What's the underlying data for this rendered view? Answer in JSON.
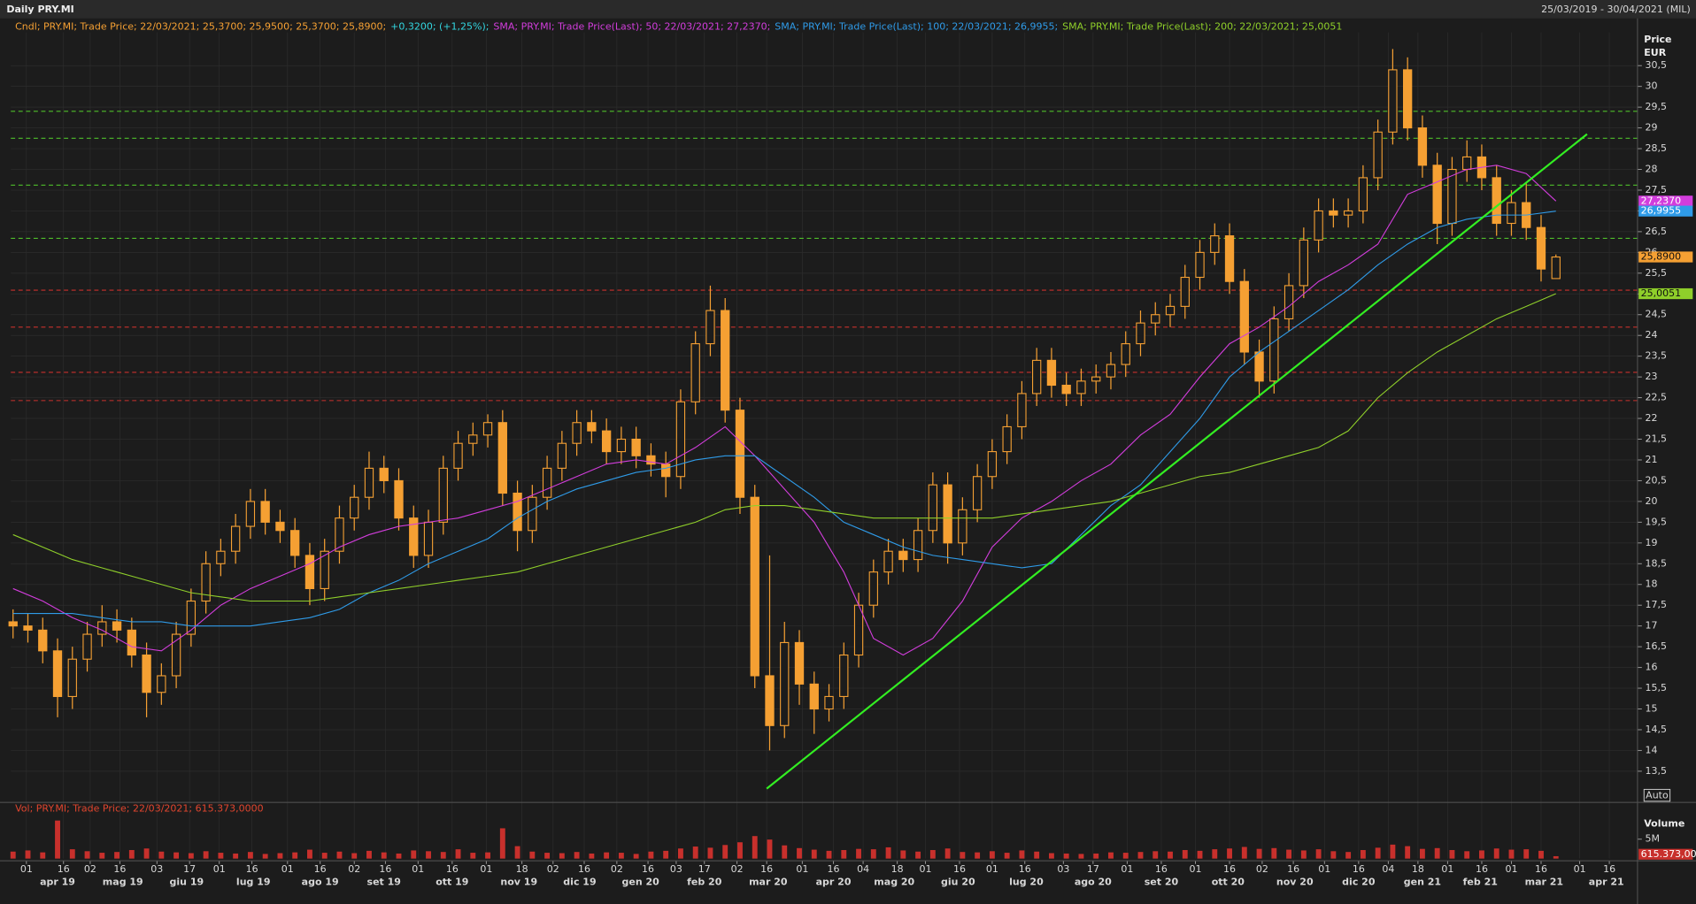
{
  "header": {
    "title": "Daily PRY.MI",
    "range": "25/03/2019 - 30/04/2021 (MIL)"
  },
  "chart_data": {
    "type": "candlestick",
    "legend": [
      {
        "text": "Cndl; PRY.MI; Trade Price; 22/03/2021; 25,3700; 25,9500; 25,3700; 25,8900;",
        "color": "#f5a033"
      },
      {
        "text": "+0,3200; (+1,25%);",
        "color": "#33d6e0"
      },
      {
        "text": "SMA; PRY.MI; Trade Price(Last); 50; 22/03/2021; 27,2370;",
        "color": "#d23ddc"
      },
      {
        "text": "SMA; PRY.MI; Trade Price(Last); 100; 22/03/2021; 26,9955;",
        "color": "#2f9be8"
      },
      {
        "text": "SMA; PRY.MI; Trade Price(Last); 200; 22/03/2021; 25,0051",
        "color": "#8fcf2a"
      }
    ],
    "y_axis_title": [
      "Price",
      "EUR"
    ],
    "color": "#f5a033",
    "open": [
      17.1,
      17.0,
      16.9,
      16.4,
      15.3,
      16.2,
      16.8,
      17.1,
      16.9,
      16.3,
      15.4,
      15.8,
      16.8,
      17.6,
      18.5,
      18.8,
      19.4,
      20.0,
      19.5,
      19.3,
      18.7,
      17.9,
      18.8,
      19.6,
      20.1,
      20.8,
      20.5,
      19.6,
      18.7,
      19.5,
      20.8,
      21.4,
      21.6,
      21.9,
      20.2,
      19.3,
      20.1,
      20.8,
      21.4,
      21.9,
      21.7,
      21.2,
      21.5,
      21.1,
      20.9,
      20.6,
      22.4,
      23.8,
      24.6,
      22.2,
      20.1,
      15.8,
      14.6,
      16.6,
      15.6,
      15.0,
      15.3,
      16.3,
      17.5,
      18.3,
      18.8,
      18.6,
      19.3,
      20.4,
      19.0,
      19.8,
      20.6,
      21.2,
      21.8,
      22.6,
      23.4,
      22.8,
      22.6,
      22.9,
      23.0,
      23.3,
      23.8,
      24.3,
      24.5,
      24.7,
      25.4,
      26.0,
      26.4,
      25.3,
      23.6,
      22.9,
      24.4,
      25.2,
      26.3,
      27.0,
      26.9,
      27.0,
      27.8,
      28.9,
      30.4,
      29.0,
      28.1,
      26.7,
      28.0,
      28.3,
      27.8,
      26.7,
      27.2,
      26.6,
      25.37
    ],
    "high": [
      17.4,
      17.3,
      17.2,
      16.7,
      16.5,
      17.1,
      17.5,
      17.4,
      17.2,
      16.6,
      16.1,
      17.1,
      17.9,
      18.8,
      19.1,
      19.7,
      20.3,
      20.3,
      19.8,
      19.6,
      19.0,
      19.1,
      19.9,
      20.4,
      21.2,
      21.1,
      20.8,
      19.9,
      19.8,
      21.1,
      21.7,
      21.9,
      22.1,
      22.2,
      20.5,
      20.4,
      21.1,
      21.7,
      22.2,
      22.2,
      22.0,
      21.8,
      21.8,
      21.4,
      21.2,
      22.7,
      24.1,
      25.2,
      24.9,
      22.5,
      20.4,
      18.7,
      17.1,
      16.9,
      15.9,
      15.6,
      16.6,
      17.8,
      18.6,
      19.1,
      19.1,
      19.6,
      20.7,
      20.7,
      20.1,
      20.9,
      21.5,
      22.1,
      22.9,
      23.7,
      23.7,
      23.1,
      23.2,
      23.3,
      23.6,
      24.1,
      24.6,
      24.8,
      25.0,
      25.7,
      26.3,
      26.7,
      26.7,
      25.6,
      23.9,
      24.7,
      25.5,
      26.6,
      27.3,
      27.3,
      27.3,
      28.1,
      29.2,
      30.9,
      30.7,
      29.3,
      28.4,
      28.3,
      28.7,
      28.6,
      28.1,
      27.5,
      27.7,
      26.9,
      25.95
    ],
    "low": [
      16.7,
      16.6,
      16.1,
      14.8,
      15.0,
      15.9,
      16.5,
      16.6,
      16.0,
      14.8,
      15.1,
      15.5,
      16.5,
      17.3,
      18.2,
      18.5,
      19.1,
      19.2,
      19.0,
      18.4,
      17.5,
      17.6,
      18.5,
      19.3,
      19.8,
      20.2,
      19.3,
      18.4,
      18.4,
      19.2,
      20.5,
      21.1,
      21.3,
      19.9,
      18.8,
      19.0,
      19.8,
      20.5,
      21.1,
      21.4,
      20.9,
      20.9,
      20.8,
      20.6,
      20.1,
      20.3,
      22.1,
      23.5,
      21.9,
      19.7,
      15.5,
      14.0,
      14.3,
      15.1,
      14.4,
      14.7,
      15.0,
      16.0,
      17.2,
      18.0,
      18.3,
      18.3,
      19.0,
      18.5,
      18.7,
      19.5,
      20.3,
      20.9,
      21.5,
      22.3,
      22.5,
      22.3,
      22.3,
      22.6,
      22.7,
      23.0,
      23.5,
      24.0,
      24.2,
      24.4,
      25.1,
      25.7,
      25.0,
      23.3,
      22.5,
      22.6,
      24.1,
      24.9,
      26.0,
      26.6,
      26.6,
      26.7,
      27.5,
      28.6,
      28.7,
      27.8,
      26.2,
      26.4,
      27.7,
      27.5,
      26.4,
      26.4,
      26.3,
      25.3,
      25.37
    ],
    "close": [
      17.0,
      16.9,
      16.4,
      15.3,
      16.2,
      16.8,
      17.1,
      16.9,
      16.3,
      15.4,
      15.8,
      16.8,
      17.6,
      18.5,
      18.8,
      19.4,
      20.0,
      19.5,
      19.3,
      18.7,
      17.9,
      18.8,
      19.6,
      20.1,
      20.8,
      20.5,
      19.6,
      18.7,
      19.5,
      20.8,
      21.4,
      21.6,
      21.9,
      20.2,
      19.3,
      20.1,
      20.8,
      21.4,
      21.9,
      21.7,
      21.2,
      21.5,
      21.1,
      20.9,
      20.6,
      22.4,
      23.8,
      24.6,
      22.2,
      20.1,
      15.8,
      14.6,
      16.6,
      15.6,
      15.0,
      15.3,
      16.3,
      17.5,
      18.3,
      18.8,
      18.6,
      19.3,
      20.4,
      19.0,
      19.8,
      20.6,
      21.2,
      21.8,
      22.6,
      23.4,
      22.8,
      22.6,
      22.9,
      23.0,
      23.3,
      23.8,
      24.3,
      24.5,
      24.7,
      25.4,
      26.0,
      26.4,
      25.3,
      23.6,
      22.9,
      24.4,
      25.2,
      26.3,
      27.0,
      26.9,
      27.0,
      27.8,
      28.9,
      30.4,
      29.0,
      28.1,
      26.7,
      28.0,
      28.3,
      27.8,
      26.7,
      27.2,
      26.6,
      25.6,
      25.89
    ],
    "last_label": "25,8900",
    "series_x": [
      0,
      2,
      4,
      6,
      8,
      10,
      12,
      14,
      16,
      18,
      20,
      22,
      24,
      26,
      28,
      30,
      32,
      34,
      36,
      38,
      40,
      42,
      44,
      46,
      48,
      50,
      52,
      54,
      56,
      58,
      60,
      62,
      64,
      66,
      68,
      70,
      72,
      74,
      76,
      78,
      80,
      82,
      84,
      86,
      88,
      90,
      92,
      94,
      96,
      98,
      100,
      102,
      104
    ],
    "series": [
      {
        "name": "SMA 50",
        "color": "#d23ddc",
        "last_label": "27,2370",
        "values": [
          17.9,
          17.6,
          17.2,
          16.9,
          16.5,
          16.4,
          16.9,
          17.5,
          17.9,
          18.2,
          18.5,
          18.9,
          19.2,
          19.4,
          19.5,
          19.6,
          19.8,
          20.0,
          20.3,
          20.6,
          20.9,
          21.0,
          20.9,
          21.3,
          21.8,
          21.1,
          20.3,
          19.5,
          18.3,
          16.7,
          16.3,
          16.7,
          17.6,
          18.9,
          19.6,
          20.0,
          20.5,
          20.9,
          21.6,
          22.1,
          23.0,
          23.8,
          24.2,
          24.7,
          25.3,
          25.7,
          26.2,
          27.4,
          27.7,
          28.0,
          28.1,
          27.9,
          27.237
        ]
      },
      {
        "name": "SMA 100",
        "color": "#2f9be8",
        "last_label": "26,9955",
        "values": [
          17.3,
          17.3,
          17.3,
          17.2,
          17.1,
          17.1,
          17.0,
          17.0,
          17.0,
          17.1,
          17.2,
          17.4,
          17.8,
          18.1,
          18.5,
          18.8,
          19.1,
          19.6,
          20.0,
          20.3,
          20.5,
          20.7,
          20.8,
          21.0,
          21.1,
          21.1,
          20.6,
          20.1,
          19.5,
          19.2,
          18.9,
          18.7,
          18.6,
          18.5,
          18.4,
          18.5,
          19.2,
          19.9,
          20.4,
          21.2,
          22.0,
          23.0,
          23.6,
          24.1,
          24.6,
          25.1,
          25.7,
          26.2,
          26.6,
          26.8,
          26.9,
          26.9,
          26.9955
        ]
      },
      {
        "name": "SMA 200",
        "color": "#8fcf2a",
        "last_label": "25,0051",
        "values": [
          19.2,
          18.9,
          18.6,
          18.4,
          18.2,
          18.0,
          17.8,
          17.7,
          17.6,
          17.6,
          17.6,
          17.7,
          17.8,
          17.9,
          18.0,
          18.1,
          18.2,
          18.3,
          18.5,
          18.7,
          18.9,
          19.1,
          19.3,
          19.5,
          19.8,
          19.9,
          19.9,
          19.8,
          19.7,
          19.6,
          19.6,
          19.6,
          19.6,
          19.6,
          19.7,
          19.8,
          19.9,
          20.0,
          20.2,
          20.4,
          20.6,
          20.7,
          20.9,
          21.1,
          21.3,
          21.7,
          22.5,
          23.1,
          23.6,
          24.0,
          24.4,
          24.7,
          25.0051
        ]
      }
    ],
    "hlines": [
      {
        "value": 29.4,
        "color": "#4fbf2a"
      },
      {
        "value": 28.75,
        "color": "#4fbf2a"
      },
      {
        "value": 27.62,
        "color": "#4fbf2a"
      },
      {
        "value": 26.34,
        "color": "#4fbf2a"
      },
      {
        "value": 25.09,
        "color": "#c8302c"
      },
      {
        "value": 24.2,
        "color": "#c8302c"
      },
      {
        "value": 23.11,
        "color": "#c8302c"
      },
      {
        "value": 22.43,
        "color": "#c8302c"
      }
    ],
    "trendline": {
      "x": [
        50.8,
        106.1
      ],
      "values": [
        13.08,
        28.85
      ],
      "color": "#33ee22"
    },
    "xlim": [
      -0.15,
      109.5
    ],
    "ylim": [
      12.75,
      31.3
    ],
    "yticks": [
      {
        "value": 13.5,
        "label": "13,5"
      },
      14,
      {
        "value": 14.5,
        "label": "14,5"
      },
      15,
      {
        "value": 15.5,
        "label": "15,5"
      },
      16,
      {
        "value": 16.5,
        "label": "16,5"
      },
      17,
      {
        "value": 17.5,
        "label": "17,5"
      },
      18,
      {
        "value": 18.5,
        "label": "18,5"
      },
      19,
      {
        "value": 19.5,
        "label": "19,5"
      },
      20,
      {
        "value": 20.5,
        "label": "20,5"
      },
      21,
      {
        "value": 21.5,
        "label": "21,5"
      },
      22,
      {
        "value": 22.5,
        "label": "22,5"
      },
      23,
      {
        "value": 23.5,
        "label": "23,5"
      },
      24,
      {
        "value": 24.5,
        "label": "24,5"
      },
      25,
      {
        "value": 25.5,
        "label": "25,5"
      },
      26,
      {
        "value": 26.5,
        "label": "26,5"
      },
      27,
      {
        "value": 27.5,
        "label": "27,5"
      },
      28,
      {
        "value": 28.5,
        "label": "28,5"
      },
      29,
      {
        "value": 29.5,
        "label": "29,5"
      },
      30,
      {
        "value": 30.5,
        "label": "30,5"
      }
    ],
    "grid": true,
    "xticks": [
      {
        "value": 0.9,
        "label": "01"
      },
      {
        "value": 3.4,
        "label": "16"
      },
      {
        "value": 5.2,
        "label": "02"
      },
      {
        "value": 7.2,
        "label": "16"
      },
      {
        "value": 9.7,
        "label": "03"
      },
      {
        "value": 11.9,
        "label": "17"
      },
      {
        "value": 13.9,
        "label": "01"
      },
      {
        "value": 16.1,
        "label": "16"
      },
      {
        "value": 18.5,
        "label": "01"
      },
      {
        "value": 20.7,
        "label": "16"
      },
      {
        "value": 23.0,
        "label": "02"
      },
      {
        "value": 25.1,
        "label": "16"
      },
      {
        "value": 27.3,
        "label": "01"
      },
      {
        "value": 29.6,
        "label": "16"
      },
      {
        "value": 31.9,
        "label": "01"
      },
      {
        "value": 34.3,
        "label": "18"
      },
      {
        "value": 36.4,
        "label": "02"
      },
      {
        "value": 38.5,
        "label": "16"
      },
      {
        "value": 40.7,
        "label": "02"
      },
      {
        "value": 42.8,
        "label": "16"
      },
      {
        "value": 44.7,
        "label": "03"
      },
      {
        "value": 46.6,
        "label": "17"
      },
      {
        "value": 48.8,
        "label": "02"
      },
      {
        "value": 50.8,
        "label": "16"
      },
      {
        "value": 53.2,
        "label": "01"
      },
      {
        "value": 55.3,
        "label": "16"
      },
      {
        "value": 57.3,
        "label": "04"
      },
      {
        "value": 59.6,
        "label": "18"
      },
      {
        "value": 61.5,
        "label": "01"
      },
      {
        "value": 63.8,
        "label": "16"
      },
      {
        "value": 66.0,
        "label": "01"
      },
      {
        "value": 68.2,
        "label": "16"
      },
      {
        "value": 70.8,
        "label": "03"
      },
      {
        "value": 72.8,
        "label": "17"
      },
      {
        "value": 75.1,
        "label": "01"
      },
      {
        "value": 77.4,
        "label": "16"
      },
      {
        "value": 79.7,
        "label": "01"
      },
      {
        "value": 82.0,
        "label": "16"
      },
      {
        "value": 84.2,
        "label": "02"
      },
      {
        "value": 86.3,
        "label": "16"
      },
      {
        "value": 88.4,
        "label": "01"
      },
      {
        "value": 90.7,
        "label": "16"
      },
      {
        "value": 92.7,
        "label": "04"
      },
      {
        "value": 94.7,
        "label": "18"
      },
      {
        "value": 96.7,
        "label": "01"
      },
      {
        "value": 99.0,
        "label": "16"
      },
      {
        "value": 101.0,
        "label": "01"
      },
      {
        "value": 103.0,
        "label": "16"
      },
      {
        "value": 105.6,
        "label": "01"
      },
      {
        "value": 107.6,
        "label": "16"
      }
    ],
    "month_ticks": [
      {
        "value": 3.0,
        "label": "apr 19"
      },
      {
        "value": 7.4,
        "label": "mag 19"
      },
      {
        "value": 11.7,
        "label": "giu 19"
      },
      {
        "value": 16.2,
        "label": "lug 19"
      },
      {
        "value": 20.7,
        "label": "ago 19"
      },
      {
        "value": 25.0,
        "label": "set 19"
      },
      {
        "value": 29.6,
        "label": "ott 19"
      },
      {
        "value": 34.1,
        "label": "nov 19"
      },
      {
        "value": 38.2,
        "label": "dic 19"
      },
      {
        "value": 42.3,
        "label": "gen 20"
      },
      {
        "value": 46.6,
        "label": "feb 20"
      },
      {
        "value": 50.9,
        "label": "mar 20"
      },
      {
        "value": 55.3,
        "label": "apr 20"
      },
      {
        "value": 59.4,
        "label": "mag 20"
      },
      {
        "value": 63.7,
        "label": "giu 20"
      },
      {
        "value": 68.3,
        "label": "lug 20"
      },
      {
        "value": 72.8,
        "label": "ago 20"
      },
      {
        "value": 77.4,
        "label": "set 20"
      },
      {
        "value": 81.9,
        "label": "ott 20"
      },
      {
        "value": 86.4,
        "label": "nov 20"
      },
      {
        "value": 90.7,
        "label": "dic 20"
      },
      {
        "value": 95.0,
        "label": "gen 21"
      },
      {
        "value": 98.9,
        "label": "feb 21"
      },
      {
        "value": 103.2,
        "label": "mar 21"
      },
      {
        "value": 107.4,
        "label": "apr 21"
      }
    ],
    "auto_button": "Auto",
    "volume": {
      "title": "Vol; PRY.MI; Trade Price; 22/03/2021; 615.373,0000",
      "axis_title": "Volume",
      "color": "#c8302c",
      "last_label": "615.373,00",
      "ylim": [
        0,
        11700000
      ],
      "yticks": [
        {
          "value": 5000000,
          "label": "5M"
        }
      ],
      "values": [
        1800000,
        2100000,
        1600000,
        9800000,
        2400000,
        1900000,
        1500000,
        1700000,
        2200000,
        2600000,
        1800000,
        1600000,
        1400000,
        1900000,
        1500000,
        1300000,
        1700000,
        1200000,
        1400000,
        1600000,
        2300000,
        1500000,
        1800000,
        1400000,
        2000000,
        1600000,
        1300000,
        2100000,
        1900000,
        1700000,
        2400000,
        1500000,
        1600000,
        7800000,
        3200000,
        1800000,
        1500000,
        1400000,
        1700000,
        1300000,
        1600000,
        1500000,
        1200000,
        1800000,
        2000000,
        2600000,
        3100000,
        2800000,
        3500000,
        4200000,
        5800000,
        4900000,
        3400000,
        2700000,
        2300000,
        2000000,
        2200000,
        2500000,
        2400000,
        2900000,
        2100000,
        1800000,
        2200000,
        2600000,
        1700000,
        1600000,
        1900000,
        1500000,
        2100000,
        1800000,
        1400000,
        1300000,
        1200000,
        1300000,
        1600000,
        1500000,
        1700000,
        1900000,
        1800000,
        2200000,
        2000000,
        2400000,
        2600000,
        3000000,
        2500000,
        2700000,
        2300000,
        2100000,
        2400000,
        1900000,
        1700000,
        2200000,
        2800000,
        3600000,
        3200000,
        2500000,
        2700000,
        2200000,
        1900000,
        2100000,
        2600000,
        2300000,
        2400000,
        2000000,
        615373
      ]
    }
  }
}
